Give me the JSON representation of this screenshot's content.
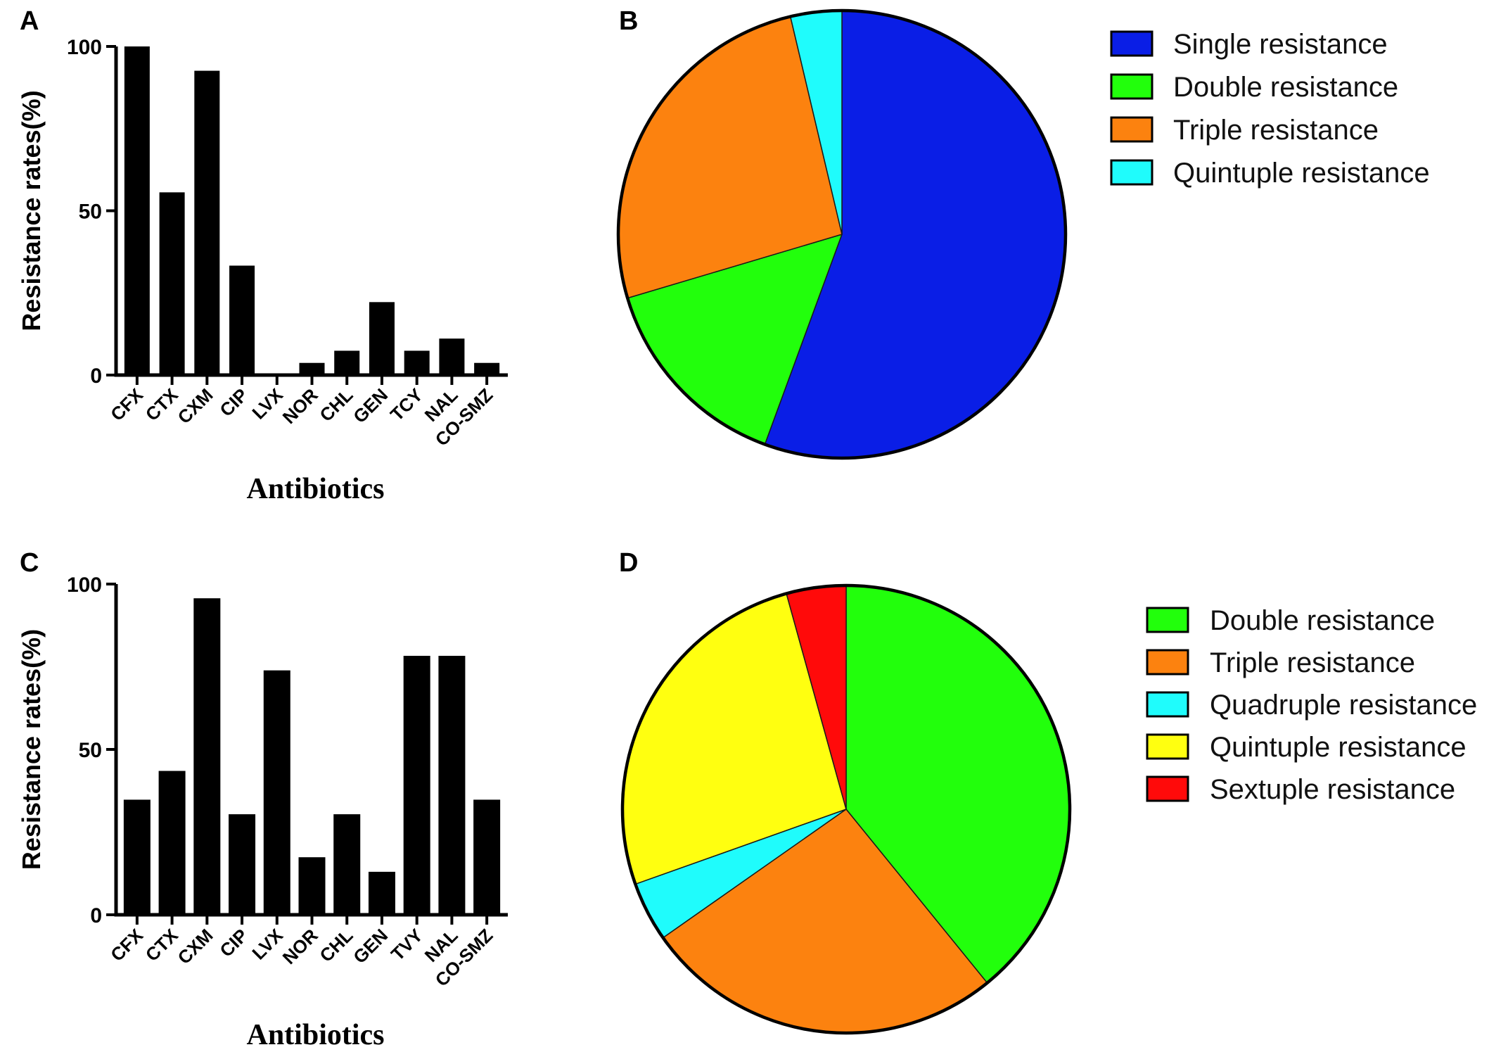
{
  "chart_data": [
    {
      "panel": "A",
      "type": "bar",
      "categories": [
        "CFX",
        "CTX",
        "CXM",
        "CIP",
        "LVX",
        "NOR",
        "CHL",
        "GEN",
        "TCY",
        "NAL",
        "CO-SMZ"
      ],
      "values": [
        100,
        55.6,
        92.6,
        33.3,
        0.5,
        3.7,
        7.4,
        22.2,
        7.4,
        11.1,
        3.7
      ],
      "ylabel": "Resistance rates(%)",
      "xlabel": "Antibiotics",
      "yticks": [
        "0",
        "50",
        "100"
      ],
      "ylim": [
        0,
        100
      ],
      "bar_color": "#000000"
    },
    {
      "panel": "B",
      "type": "pie",
      "slices": [
        {
          "label": "Single resistance",
          "value": 55.6,
          "color": "#0a1ee6"
        },
        {
          "label": "Double resistance",
          "value": 14.8,
          "color": "#22ff0c"
        },
        {
          "label": "Triple resistance",
          "value": 25.9,
          "color": "#fc820f"
        },
        {
          "label": "Quintuple resistance",
          "value": 3.7,
          "color": "#1ffcfc"
        }
      ],
      "legend_position": "right"
    },
    {
      "panel": "C",
      "type": "bar",
      "categories": [
        "CFX",
        "CTX",
        "CXM",
        "CIP",
        "LVX",
        "NOR",
        "CHL",
        "GEN",
        "TVY",
        "NAL",
        "CO-SMZ"
      ],
      "values": [
        34.8,
        43.5,
        95.7,
        30.4,
        73.9,
        17.4,
        30.4,
        13.0,
        78.3,
        78.3,
        34.8
      ],
      "ylabel": "Resistance rates(%)",
      "xlabel": "Antibiotics",
      "yticks": [
        "0",
        "50",
        "100"
      ],
      "ylim": [
        0,
        100
      ],
      "bar_color": "#000000"
    },
    {
      "panel": "D",
      "type": "pie",
      "slices": [
        {
          "label": "Double resistance",
          "value": 39.1,
          "color": "#22ff0c"
        },
        {
          "label": "Triple resistance",
          "value": 26.1,
          "color": "#fc820f"
        },
        {
          "label": "Quadruple resistance",
          "value": 4.3,
          "color": "#1ffcfc"
        },
        {
          "label": "Quintuple resistance",
          "value": 26.1,
          "color": "#ffff10"
        },
        {
          "label": "Sextuple resistance",
          "value": 4.3,
          "color": "#ff0a0a"
        }
      ],
      "legend_position": "right"
    }
  ]
}
